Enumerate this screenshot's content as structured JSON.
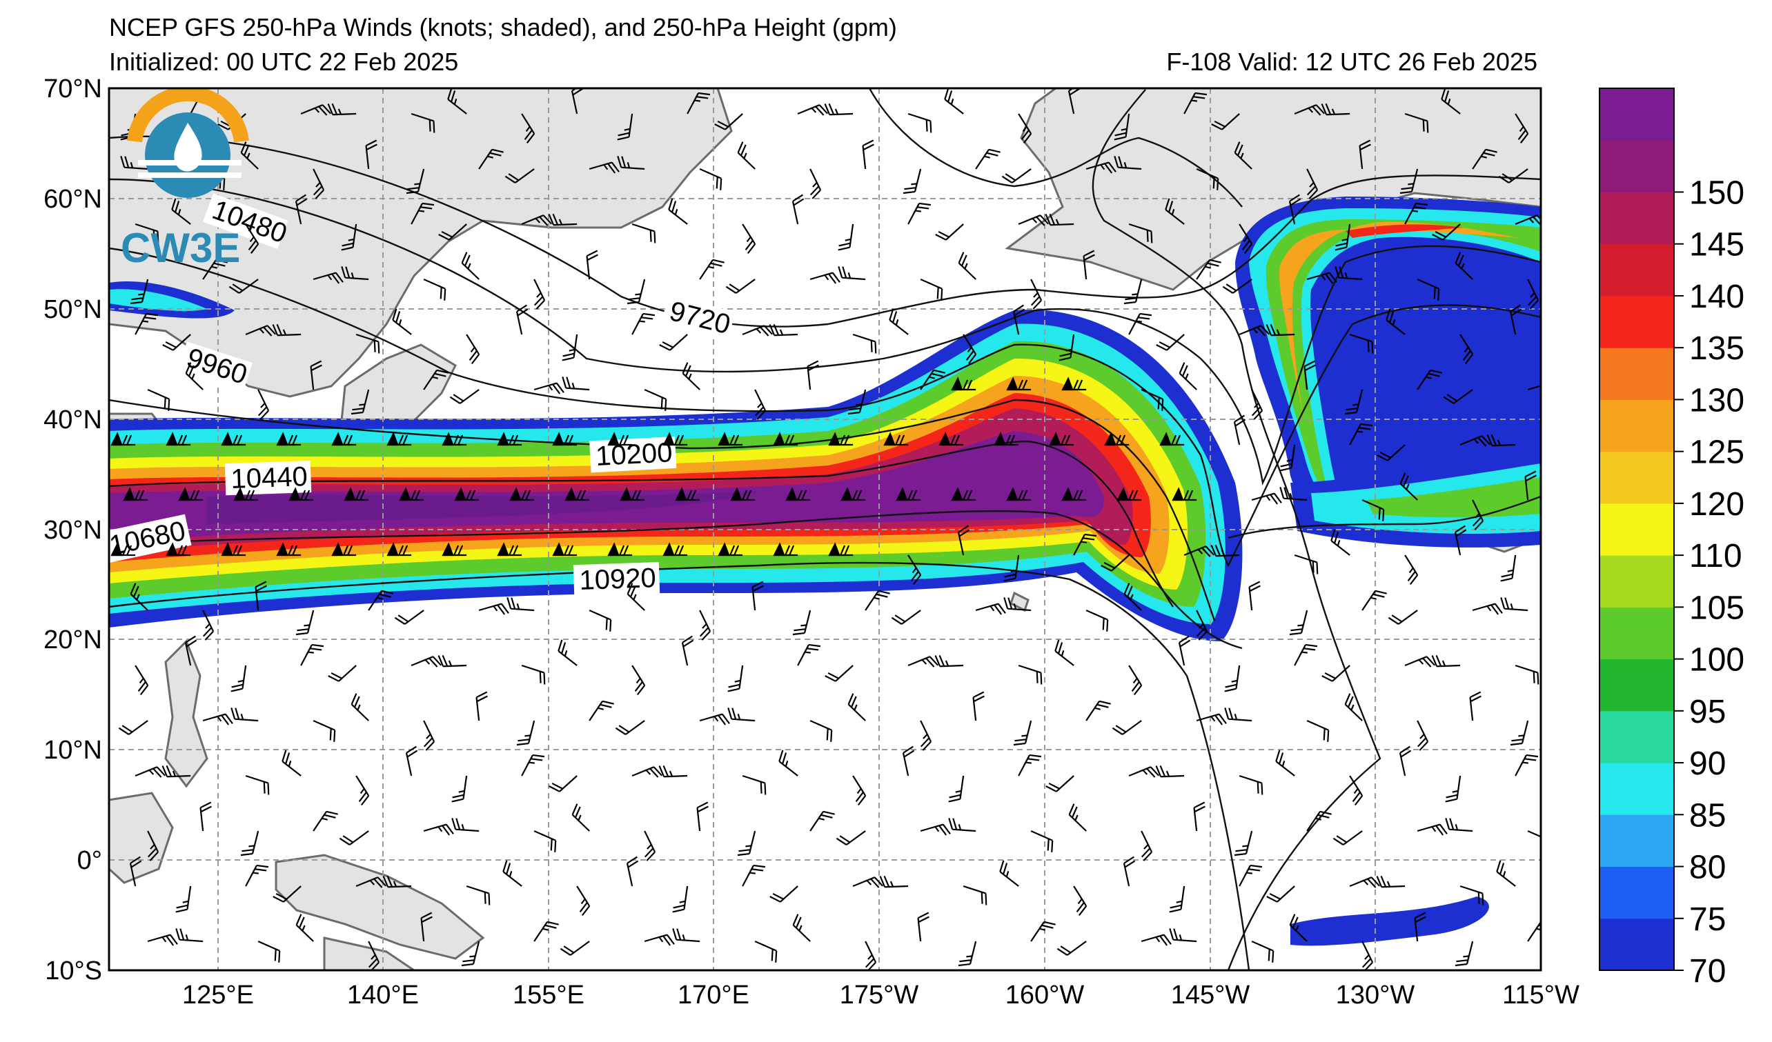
{
  "header": {
    "title": "NCEP GFS 250-hPa Winds (knots; shaded), and 250-hPa Height (gpm)",
    "initialized": "Initialized: 00 UTC 22 Feb 2025",
    "valid": "F-108  Valid: 12 UTC 26 Feb 2025"
  },
  "logo": {
    "text": "CW3E"
  },
  "map": {
    "lat_labels": [
      "70°N",
      "60°N",
      "50°N",
      "40°N",
      "30°N",
      "20°N",
      "10°N",
      "0°",
      "10°S"
    ],
    "lon_labels": [
      "125°E",
      "140°E",
      "155°E",
      "170°E",
      "175°W",
      "160°W",
      "145°W",
      "130°W",
      "115°W"
    ],
    "extent": {
      "lon_west": "115°E",
      "lon_east": "115°W",
      "lat_south": -10,
      "lat_north": 70
    }
  },
  "contours": [
    {
      "label": "10480",
      "value": 10480
    },
    {
      "label": "9960",
      "value": 9960
    },
    {
      "label": "9720",
      "value": 9720
    },
    {
      "label": "10440",
      "value": 10440
    },
    {
      "label": "10200",
      "value": 10200
    },
    {
      "label": "10680",
      "value": 10680
    },
    {
      "label": "10920",
      "value": 10920
    }
  ],
  "colorbar": {
    "unit": "knots",
    "ticks": [
      "150",
      "145",
      "140",
      "135",
      "130",
      "125",
      "120",
      "110",
      "105",
      "100",
      "95",
      "90",
      "85",
      "80",
      "75",
      "70"
    ],
    "levels": [
      70,
      75,
      80,
      85,
      90,
      95,
      100,
      105,
      110,
      120,
      125,
      130,
      135,
      140,
      145,
      150,
      155
    ],
    "colors": [
      "#1d2fd0",
      "#1e5ef2",
      "#2aa6f2",
      "#26e8ec",
      "#2ad9a0",
      "#22b630",
      "#5ecb2c",
      "#a6dc20",
      "#f5f516",
      "#f4c820",
      "#f6a41e",
      "#f5781e",
      "#f4261a",
      "#d31c2c",
      "#b21c58",
      "#8f1b78",
      "#7b1c92"
    ]
  },
  "colors": {
    "land": "#e3e3e3",
    "coast": "#6b6b6b",
    "grid": "#9a9a9a",
    "logo_orange": "#f5a21b",
    "logo_blue": "#2b8bb5"
  }
}
